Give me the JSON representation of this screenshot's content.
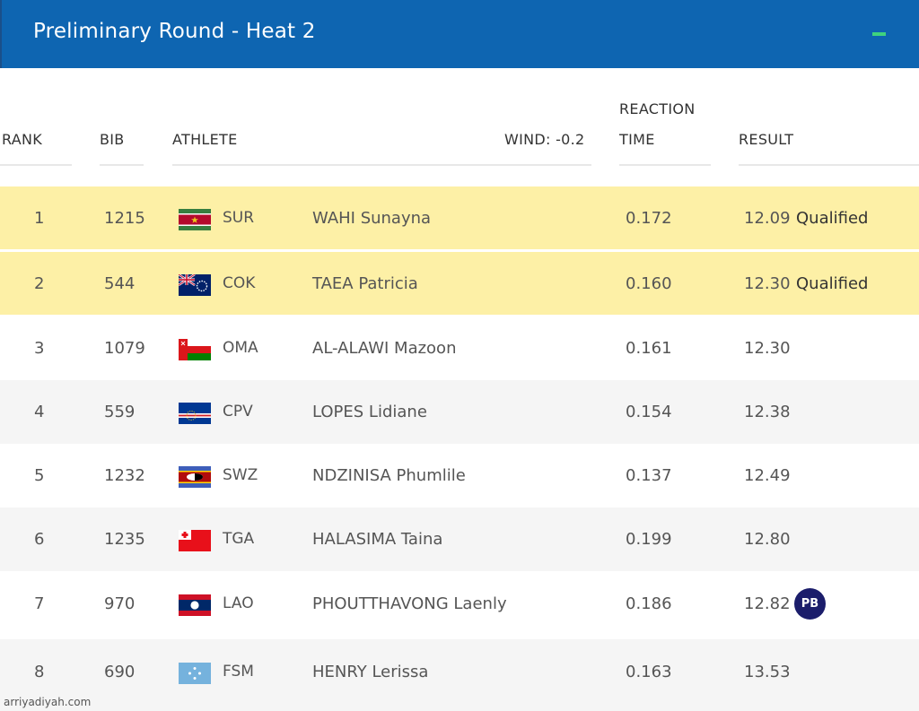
{
  "header": {
    "title": "Preliminary Round - Heat 2"
  },
  "columns": {
    "rank": "RANK",
    "bib": "BIB",
    "athlete": "ATHLETE",
    "wind": "WIND: -0.2",
    "reaction_line1": "REACTION",
    "reaction_line2": "TIME",
    "result": "RESULT"
  },
  "rows": [
    {
      "rank": "1",
      "bib": "1215",
      "country": "SUR",
      "athlete": "WAHI Sunayna",
      "reaction": "0.172",
      "result": "12.09",
      "status": "Qualified",
      "badge": ""
    },
    {
      "rank": "2",
      "bib": "544",
      "country": "COK",
      "athlete": "TAEA Patricia",
      "reaction": "0.160",
      "result": "12.30",
      "status": "Qualified",
      "badge": ""
    },
    {
      "rank": "3",
      "bib": "1079",
      "country": "OMA",
      "athlete": "AL-ALAWI Mazoon",
      "reaction": "0.161",
      "result": "12.30",
      "status": "",
      "badge": ""
    },
    {
      "rank": "4",
      "bib": "559",
      "country": "CPV",
      "athlete": "LOPES Lidiane",
      "reaction": "0.154",
      "result": "12.38",
      "status": "",
      "badge": ""
    },
    {
      "rank": "5",
      "bib": "1232",
      "country": "SWZ",
      "athlete": "NDZINISA Phumlile",
      "reaction": "0.137",
      "result": "12.49",
      "status": "",
      "badge": ""
    },
    {
      "rank": "6",
      "bib": "1235",
      "country": "TGA",
      "athlete": "HALASIMA Taina",
      "reaction": "0.199",
      "result": "12.80",
      "status": "",
      "badge": ""
    },
    {
      "rank": "7",
      "bib": "970",
      "country": "LAO",
      "athlete": "PHOUTTHAVONG Laenly",
      "reaction": "0.186",
      "result": "12.82",
      "status": "",
      "badge": "PB"
    },
    {
      "rank": "8",
      "bib": "690",
      "country": "FSM",
      "athlete": "HENRY Lerissa",
      "reaction": "0.163",
      "result": "13.53",
      "status": "",
      "badge": ""
    }
  ],
  "watermark": "arriyadiyah.com",
  "colors": {
    "header_bg": "#0e65b1",
    "qualified_bg": "#fdf0a6",
    "pb_badge": "#1b1d6b",
    "collapse_icon": "#3fd37e"
  }
}
